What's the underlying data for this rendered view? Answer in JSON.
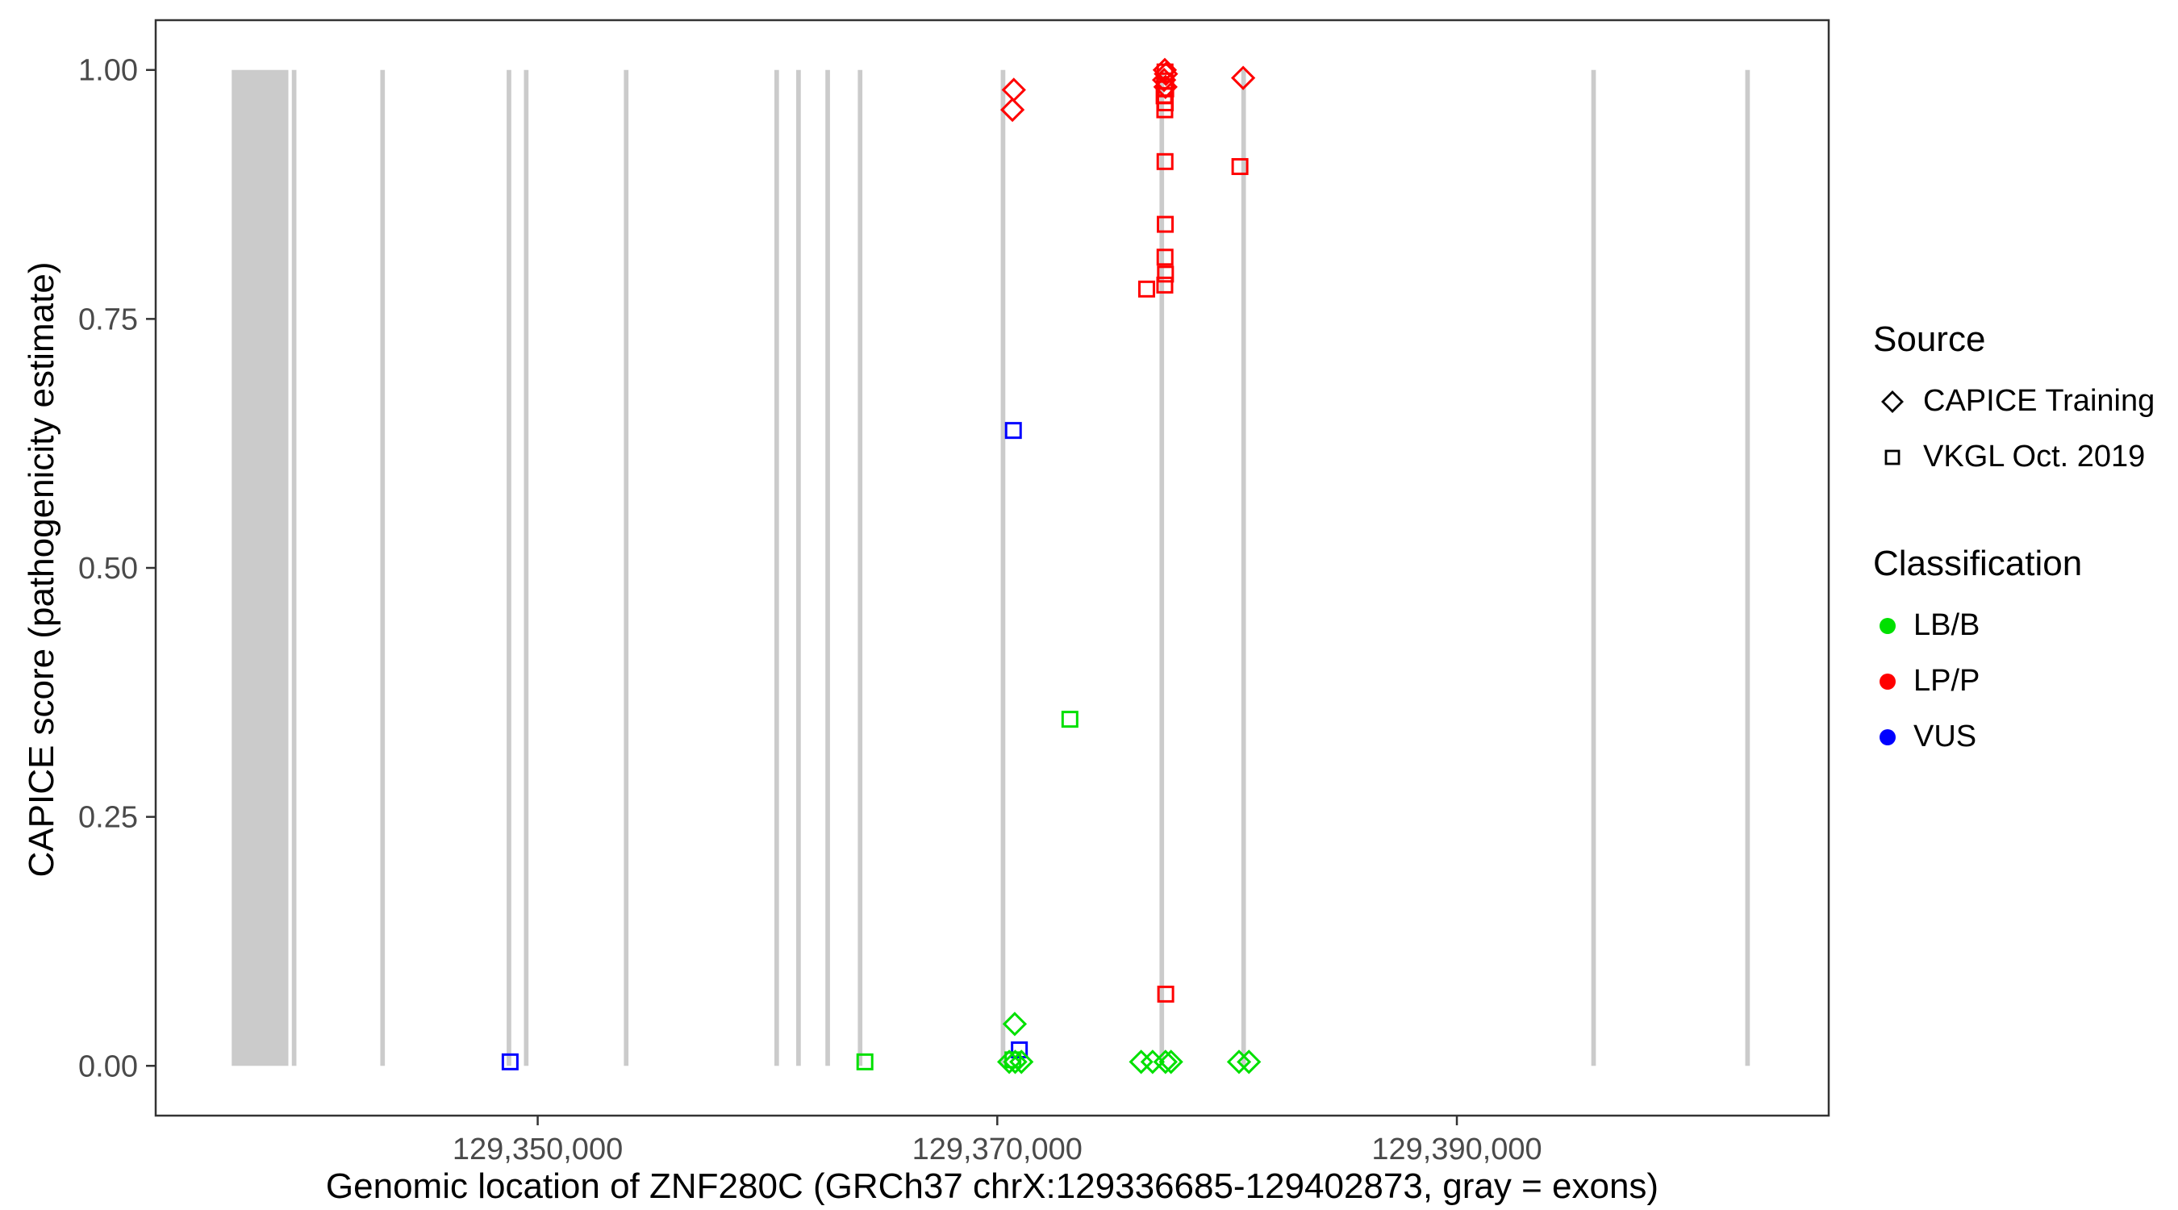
{
  "chart_data": {
    "type": "scatter",
    "title": "",
    "xlabel": "Genomic location of ZNF280C (GRCh37 chrX:129336685-129402873, gray = exons)",
    "ylabel": "CAPICE score (pathogenicity estimate)",
    "x_domain": [
      129333376,
      129406182
    ],
    "y_domain": [
      -0.05,
      1.05
    ],
    "x_ticks": [
      {
        "value": 129350000,
        "label": "129,350,000"
      },
      {
        "value": 129370000,
        "label": "129,370,000"
      },
      {
        "value": 129390000,
        "label": "129,390,000"
      }
    ],
    "y_ticks": [
      {
        "value": 0.0,
        "label": "0.00"
      },
      {
        "value": 0.25,
        "label": "0.25"
      },
      {
        "value": 0.5,
        "label": "0.50"
      },
      {
        "value": 0.75,
        "label": "0.75"
      },
      {
        "value": 1.0,
        "label": "1.00"
      }
    ],
    "grid": false,
    "exon_color": "#CBCBCB",
    "exons": [
      [
        129336685,
        129339150
      ],
      [
        129339300,
        129339500
      ],
      [
        129343150,
        129343350
      ],
      [
        129348650,
        129348850
      ],
      [
        129349400,
        129349600
      ],
      [
        129353750,
        129353950
      ],
      [
        129360300,
        129360500
      ],
      [
        129361250,
        129361450
      ],
      [
        129362520,
        129362720
      ],
      [
        129363930,
        129364130
      ],
      [
        129370150,
        129370350
      ],
      [
        129377060,
        129377260
      ],
      [
        129380620,
        129380820
      ],
      [
        129395850,
        129396050
      ],
      [
        129402550,
        129402750
      ]
    ],
    "classification_colors": {
      "LB/B": "#00E000",
      "LP/P": "#FF0000",
      "VUS": "#0000FF"
    },
    "series": [
      {
        "name": "CAPICE Training",
        "shape": "diamond",
        "points": [
          {
            "x": 129370720,
            "y": 0.98,
            "class": "LP/P"
          },
          {
            "x": 129370660,
            "y": 0.96,
            "class": "LP/P"
          },
          {
            "x": 129377290,
            "y": 1.0,
            "class": "LP/P"
          },
          {
            "x": 129377340,
            "y": 0.996,
            "class": "LP/P"
          },
          {
            "x": 129377260,
            "y": 0.99,
            "class": "LP/P"
          },
          {
            "x": 129377320,
            "y": 0.983,
            "class": "LP/P"
          },
          {
            "x": 129380700,
            "y": 0.992,
            "class": "LP/P"
          },
          {
            "x": 129370760,
            "y": 0.042,
            "class": "LB/B"
          },
          {
            "x": 129370520,
            "y": 0.004,
            "class": "LB/B"
          },
          {
            "x": 129370780,
            "y": 0.004,
            "class": "LB/B"
          },
          {
            "x": 129371050,
            "y": 0.004,
            "class": "LB/B"
          },
          {
            "x": 129376260,
            "y": 0.004,
            "class": "LB/B"
          },
          {
            "x": 129376760,
            "y": 0.004,
            "class": "LB/B"
          },
          {
            "x": 129377320,
            "y": 0.004,
            "class": "LB/B"
          },
          {
            "x": 129377560,
            "y": 0.004,
            "class": "LB/B"
          },
          {
            "x": 129380520,
            "y": 0.004,
            "class": "LB/B"
          },
          {
            "x": 129380950,
            "y": 0.004,
            "class": "LB/B"
          }
        ]
      },
      {
        "name": "VKGL Oct. 2019",
        "shape": "square",
        "points": [
          {
            "x": 129377300,
            "y": 0.998,
            "class": "LP/P"
          },
          {
            "x": 129377280,
            "y": 0.989,
            "class": "LP/P"
          },
          {
            "x": 129377330,
            "y": 0.981,
            "class": "LP/P"
          },
          {
            "x": 129377260,
            "y": 0.974,
            "class": "LP/P"
          },
          {
            "x": 129377310,
            "y": 0.967,
            "class": "LP/P"
          },
          {
            "x": 129377290,
            "y": 0.96,
            "class": "LP/P"
          },
          {
            "x": 129377300,
            "y": 0.908,
            "class": "LP/P"
          },
          {
            "x": 129377310,
            "y": 0.845,
            "class": "LP/P"
          },
          {
            "x": 129377300,
            "y": 0.812,
            "class": "LP/P"
          },
          {
            "x": 129377320,
            "y": 0.795,
            "class": "LP/P"
          },
          {
            "x": 129377290,
            "y": 0.784,
            "class": "LP/P"
          },
          {
            "x": 129376500,
            "y": 0.78,
            "class": "LP/P"
          },
          {
            "x": 129377330,
            "y": 0.072,
            "class": "LP/P"
          },
          {
            "x": 129380560,
            "y": 0.903,
            "class": "LP/P"
          },
          {
            "x": 129370700,
            "y": 0.638,
            "class": "VUS"
          },
          {
            "x": 129348800,
            "y": 0.004,
            "class": "VUS"
          },
          {
            "x": 129370960,
            "y": 0.016,
            "class": "VUS"
          },
          {
            "x": 129373160,
            "y": 0.348,
            "class": "LB/B"
          },
          {
            "x": 129364240,
            "y": 0.004,
            "class": "LB/B"
          },
          {
            "x": 129370680,
            "y": 0.006,
            "class": "LB/B"
          }
        ]
      }
    ],
    "legend": {
      "source_title": "Source",
      "source_items": [
        {
          "label": "CAPICE Training",
          "shape": "diamond"
        },
        {
          "label": "VKGL Oct. 2019",
          "shape": "square"
        }
      ],
      "classification_title": "Classification",
      "classification_items": [
        {
          "label": "LB/B",
          "color": "#00E000"
        },
        {
          "label": "LP/P",
          "color": "#FF0000"
        },
        {
          "label": "VUS",
          "color": "#0000FF"
        }
      ]
    }
  }
}
